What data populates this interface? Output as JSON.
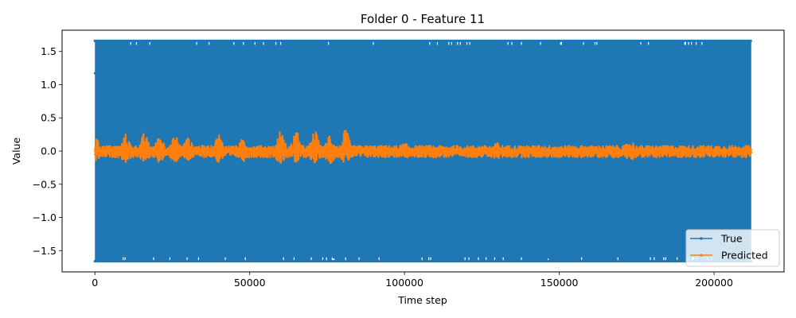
{
  "chart_data": {
    "type": "line",
    "title": "Folder 0 - Feature 11",
    "xlabel": "Time step",
    "ylabel": "Value",
    "xlim": [
      -10600,
      222600
    ],
    "ylim": [
      -1.82,
      1.82
    ],
    "x_range": [
      0,
      212000
    ],
    "x_ticks": [
      0,
      50000,
      100000,
      150000,
      200000
    ],
    "x_tick_labels": [
      "0",
      "50000",
      "100000",
      "150000",
      "200000"
    ],
    "y_ticks": [
      -1.5,
      -1.0,
      -0.5,
      0.0,
      0.5,
      1.0,
      1.5
    ],
    "y_tick_labels": [
      "−1.5",
      "−1.0",
      "−0.5",
      "0.0",
      "0.5",
      "1.0",
      "1.5"
    ],
    "grid": false,
    "legend_position": "lower-right",
    "series": [
      {
        "name": "True",
        "color": "#1f77b4",
        "marker": "dot",
        "value_min": -1.66,
        "value_max": 1.66,
        "description_of_values": "dense oscillation between -1.66 and 1.66 across all time steps"
      },
      {
        "name": "Predicted",
        "color": "#ff7f0e",
        "marker": "dot",
        "value_min": -0.2,
        "value_max": 0.35,
        "peaks": [
          {
            "x": 0,
            "y": 0.25
          },
          {
            "x": 10000,
            "y": 0.27
          },
          {
            "x": 16000,
            "y": 0.3
          },
          {
            "x": 21000,
            "y": 0.28
          },
          {
            "x": 26000,
            "y": 0.27
          },
          {
            "x": 30000,
            "y": 0.22
          },
          {
            "x": 40000,
            "y": 0.28
          },
          {
            "x": 48000,
            "y": 0.22
          },
          {
            "x": 60000,
            "y": 0.34
          },
          {
            "x": 65000,
            "y": 0.35
          },
          {
            "x": 71000,
            "y": 0.35
          },
          {
            "x": 76000,
            "y": 0.32
          },
          {
            "x": 81000,
            "y": 0.36
          },
          {
            "x": 100000,
            "y": 0.12
          },
          {
            "x": 130000,
            "y": 0.13
          },
          {
            "x": 173000,
            "y": 0.18
          },
          {
            "x": 212000,
            "y": 0.05
          }
        ]
      }
    ]
  }
}
